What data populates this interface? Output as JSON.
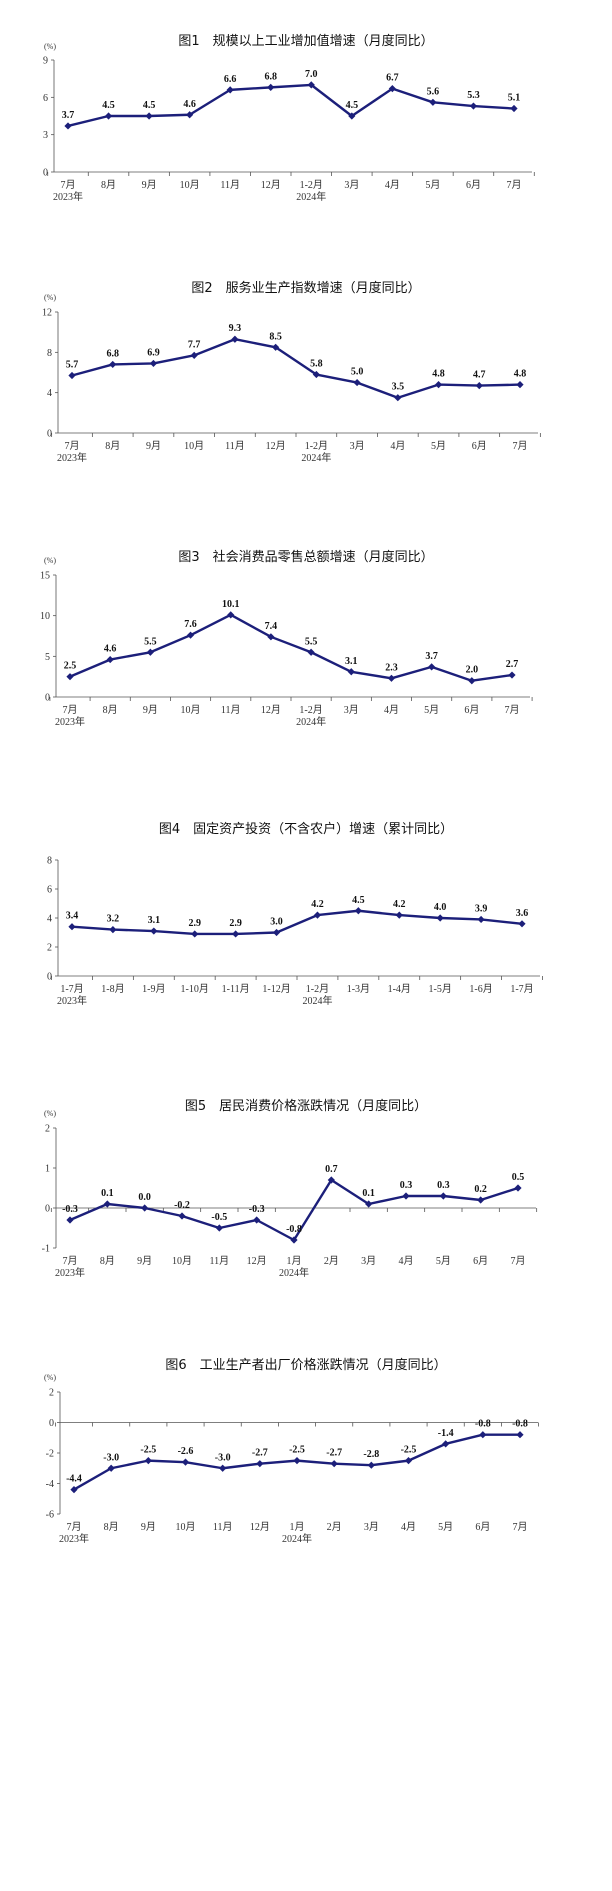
{
  "chart_data": [
    {
      "type": "line",
      "title": "图1　规模以上工业增加值增速（月度同比）",
      "unit": "(%)",
      "yticks": [
        "0",
        "3",
        "6",
        "9"
      ],
      "ylim": [
        0,
        9
      ],
      "categories": [
        "7月",
        "8月",
        "9月",
        "10月",
        "11月",
        "12月",
        "1-2月",
        "3月",
        "4月",
        "5月",
        "6月",
        "7月"
      ],
      "year_labels": [
        "2023年",
        "2024年"
      ],
      "values": [
        3.7,
        4.5,
        4.5,
        4.6,
        6.6,
        6.8,
        7.0,
        4.5,
        6.7,
        5.6,
        5.3,
        5.1
      ],
      "labels": [
        "3.7",
        "4.5",
        "4.5",
        "4.6",
        "6.6",
        "6.8",
        "7.0",
        "4.5",
        "6.7",
        "5.6",
        "5.3",
        "5.1"
      ],
      "color": "#1c1f7a"
    },
    {
      "type": "line",
      "title": "图2　服务业生产指数增速（月度同比）",
      "unit": "(%)",
      "yticks": [
        "0",
        "4",
        "8",
        "12"
      ],
      "ylim": [
        0,
        12
      ],
      "categories": [
        "7月",
        "8月",
        "9月",
        "10月",
        "11月",
        "12月",
        "1-2月",
        "3月",
        "4月",
        "5月",
        "6月",
        "7月"
      ],
      "year_labels": [
        "2023年",
        "2024年"
      ],
      "values": [
        5.7,
        6.8,
        6.9,
        7.7,
        9.3,
        8.5,
        5.8,
        5.0,
        3.5,
        4.8,
        4.7,
        4.8
      ],
      "labels": [
        "5.7",
        "6.8",
        "6.9",
        "7.7",
        "9.3",
        "8.5",
        "5.8",
        "5.0",
        "3.5",
        "4.8",
        "4.7",
        "4.8"
      ],
      "color": "#1c1f7a"
    },
    {
      "type": "line",
      "title": "图3　社会消费品零售总额增速（月度同比）",
      "unit": "(%)",
      "yticks": [
        "0",
        "5",
        "10",
        "15"
      ],
      "ylim": [
        0,
        15
      ],
      "categories": [
        "7月",
        "8月",
        "9月",
        "10月",
        "11月",
        "12月",
        "1-2月",
        "3月",
        "4月",
        "5月",
        "6月",
        "7月"
      ],
      "year_labels": [
        "2023年",
        "2024年"
      ],
      "values": [
        2.5,
        4.6,
        5.5,
        7.6,
        10.1,
        7.4,
        5.5,
        3.1,
        2.3,
        3.7,
        2.0,
        2.7
      ],
      "labels": [
        "2.5",
        "4.6",
        "5.5",
        "7.6",
        "10.1",
        "7.4",
        "5.5",
        "3.1",
        "2.3",
        "3.7",
        "2.0",
        "2.7"
      ],
      "color": "#1c1f7a"
    },
    {
      "type": "line",
      "title": "图4　固定资产投资（不含农户）增速（累计同比）",
      "unit": "",
      "yticks": [
        "0",
        "2",
        "4",
        "6",
        "8"
      ],
      "ylim": [
        0,
        8
      ],
      "categories": [
        "1-7月",
        "1-8月",
        "1-9月",
        "1-10月",
        "1-11月",
        "1-12月",
        "1-2月",
        "1-3月",
        "1-4月",
        "1-5月",
        "1-6月",
        "1-7月"
      ],
      "year_labels": [
        "2023年",
        "2024年"
      ],
      "values": [
        3.4,
        3.2,
        3.1,
        2.9,
        2.9,
        3.0,
        4.2,
        4.5,
        4.2,
        4.0,
        3.9,
        3.6
      ],
      "labels": [
        "3.4",
        "3.2",
        "3.1",
        "2.9",
        "2.9",
        "3.0",
        "4.2",
        "4.5",
        "4.2",
        "4.0",
        "3.9",
        "3.6"
      ],
      "color": "#1c1f7a"
    },
    {
      "type": "line",
      "title": "图5　居民消费价格涨跌情况（月度同比）",
      "unit": "(%)",
      "yticks": [
        "-1",
        "0",
        "1",
        "2"
      ],
      "ylim": [
        -1,
        2
      ],
      "categories": [
        "7月",
        "8月",
        "9月",
        "10月",
        "11月",
        "12月",
        "1月",
        "2月",
        "3月",
        "4月",
        "5月",
        "6月",
        "7月"
      ],
      "year_labels": [
        "2023年",
        "2024年"
      ],
      "values": [
        -0.3,
        0.1,
        0.0,
        -0.2,
        -0.5,
        -0.3,
        -0.8,
        0.7,
        0.1,
        0.3,
        0.3,
        0.2,
        0.5
      ],
      "labels": [
        "-0.3",
        "0.1",
        "0.0",
        "-0.2",
        "-0.5",
        "-0.3",
        "-0.8",
        "0.7",
        "0.1",
        "0.3",
        "0.3",
        "0.2",
        "0.5"
      ],
      "color": "#1c1f7a"
    },
    {
      "type": "line",
      "title": "图6　工业生产者出厂价格涨跌情况（月度同比）",
      "unit": "(%)",
      "yticks": [
        "-6",
        "-4",
        "-2",
        "0",
        "2"
      ],
      "ylim": [
        -6,
        2
      ],
      "categories": [
        "7月",
        "8月",
        "9月",
        "10月",
        "11月",
        "12月",
        "1月",
        "2月",
        "3月",
        "4月",
        "5月",
        "6月",
        "7月"
      ],
      "year_labels": [
        "2023年",
        "2024年"
      ],
      "values": [
        -4.4,
        -3.0,
        -2.5,
        -2.6,
        -3.0,
        -2.7,
        -2.5,
        -2.7,
        -2.8,
        -2.5,
        -1.4,
        -0.8,
        -0.8
      ],
      "labels": [
        "-4.4",
        "-3.0",
        "-2.5",
        "-2.6",
        "-3.0",
        "-2.7",
        "-2.5",
        "-2.7",
        "-2.8",
        "-2.5",
        "-1.4",
        "-0.8",
        "-0.8"
      ],
      "color": "#1c1f7a"
    }
  ]
}
